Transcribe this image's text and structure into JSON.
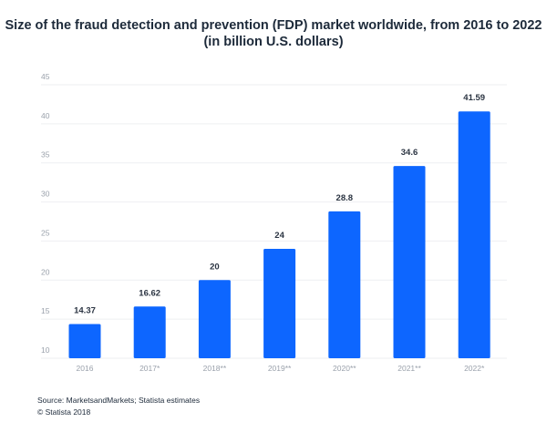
{
  "chart_data": {
    "type": "bar",
    "title": "Size of the fraud detection and prevention (FDP) market worldwide, from 2016 to 2022",
    "subtitle": "(in billion U.S. dollars)",
    "categories": [
      "2016",
      "2017*",
      "2018**",
      "2019**",
      "2020**",
      "2021**",
      "2022*"
    ],
    "values": [
      14.37,
      16.62,
      20,
      24,
      28.8,
      34.6,
      41.59
    ],
    "value_labels": [
      "14.37",
      "16.62",
      "20",
      "24",
      "28.8",
      "34.6",
      "41.59"
    ],
    "xlabel": "",
    "ylabel": "",
    "ylim": [
      10,
      45
    ],
    "yticks": [
      10,
      15,
      20,
      25,
      30,
      35,
      40,
      45
    ],
    "grid": true,
    "legend": "none",
    "bar_color": "#0d66ff"
  },
  "footer": {
    "source": "Source: MarketsandMarkets; Statista estimates",
    "copyright": "© Statista 2018"
  }
}
